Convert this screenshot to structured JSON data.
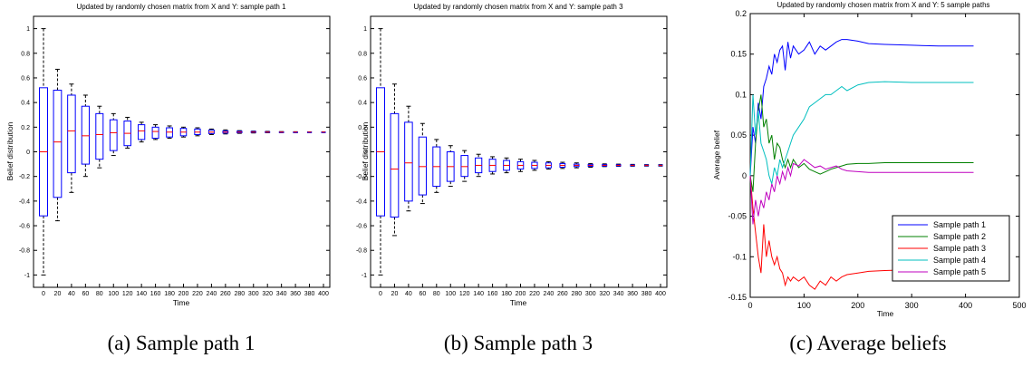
{
  "captions": [
    "(a) Sample path 1",
    "(b) Sample path 3",
    "(c) Average beliefs"
  ],
  "chart_data": [
    {
      "type": "boxplot",
      "title": "Updated by randomly chosen matrix from X and Y: sample path 1",
      "xlabel": "Time",
      "ylabel": "Belief distribution",
      "ylim": [
        -1.1,
        1.1
      ],
      "yticks": [
        "1",
        "0.8",
        "0.6",
        "0.4",
        "0.2",
        "0",
        "-0.2",
        "-0.4",
        "-0.6",
        "-0.8",
        "-1"
      ],
      "categories": [
        "0",
        "20",
        "40",
        "60",
        "80",
        "100",
        "120",
        "140",
        "160",
        "180",
        "200",
        "220",
        "240",
        "260",
        "280",
        "300",
        "320",
        "340",
        "360",
        "380",
        "400"
      ],
      "median": [
        0,
        0.08,
        0.17,
        0.13,
        0.14,
        0.155,
        0.15,
        0.17,
        0.165,
        0.16,
        0.16,
        0.16,
        0.16,
        0.16,
        0.16,
        0.16,
        0.16,
        0.16,
        0.16,
        0.16,
        0.16
      ],
      "q1": [
        -0.52,
        -0.37,
        -0.17,
        -0.1,
        -0.06,
        0.01,
        0.05,
        0.1,
        0.11,
        0.12,
        0.13,
        0.14,
        0.148,
        0.152,
        0.155,
        0.157,
        0.158,
        0.158,
        0.159,
        0.159,
        0.159
      ],
      "q3": [
        0.52,
        0.5,
        0.46,
        0.37,
        0.31,
        0.26,
        0.25,
        0.22,
        0.2,
        0.195,
        0.19,
        0.185,
        0.177,
        0.17,
        0.167,
        0.165,
        0.163,
        0.162,
        0.161,
        0.161,
        0.161
      ],
      "wmin": [
        -1,
        -0.56,
        -0.33,
        -0.2,
        -0.13,
        -0.03,
        0.03,
        0.08,
        0.1,
        0.11,
        0.12,
        0.13,
        0.14,
        0.145,
        0.15,
        0.153,
        0.155,
        0.156,
        0.157,
        0.158,
        0.158
      ],
      "wmax": [
        1,
        0.67,
        0.55,
        0.46,
        0.37,
        0.31,
        0.28,
        0.24,
        0.22,
        0.21,
        0.2,
        0.195,
        0.185,
        0.178,
        0.172,
        0.168,
        0.166,
        0.164,
        0.163,
        0.162,
        0.162
      ]
    },
    {
      "type": "boxplot",
      "title": "Updated by randomly chosen matrix from X and Y: sample path 3",
      "xlabel": "Time",
      "ylabel": "Belief distribution",
      "ylim": [
        -1.1,
        1.1
      ],
      "yticks": [
        "1",
        "0.8",
        "0.6",
        "0.4",
        "0.2",
        "0",
        "-0.2",
        "-0.4",
        "-0.6",
        "-0.8",
        "-1"
      ],
      "categories": [
        "0",
        "20",
        "40",
        "60",
        "80",
        "100",
        "120",
        "140",
        "160",
        "180",
        "200",
        "220",
        "240",
        "260",
        "280",
        "300",
        "320",
        "340",
        "360",
        "380",
        "400"
      ],
      "median": [
        0,
        -0.14,
        -0.09,
        -0.12,
        -0.12,
        -0.12,
        -0.12,
        -0.11,
        -0.11,
        -0.11,
        -0.11,
        -0.11,
        -0.11,
        -0.11,
        -0.11,
        -0.11,
        -0.11,
        -0.11,
        -0.11,
        -0.11,
        -0.11
      ],
      "q1": [
        -0.52,
        -0.53,
        -0.4,
        -0.35,
        -0.28,
        -0.24,
        -0.2,
        -0.17,
        -0.16,
        -0.15,
        -0.14,
        -0.135,
        -0.13,
        -0.125,
        -0.12,
        -0.118,
        -0.116,
        -0.115,
        -0.114,
        -0.113,
        -0.113
      ],
      "q3": [
        0.52,
        0.31,
        0.24,
        0.12,
        0.04,
        0,
        -0.03,
        -0.05,
        -0.06,
        -0.07,
        -0.08,
        -0.085,
        -0.09,
        -0.095,
        -0.1,
        -0.102,
        -0.104,
        -0.105,
        -0.106,
        -0.107,
        -0.107
      ],
      "wmin": [
        -1,
        -0.68,
        -0.48,
        -0.42,
        -0.33,
        -0.28,
        -0.24,
        -0.2,
        -0.18,
        -0.17,
        -0.16,
        -0.15,
        -0.14,
        -0.135,
        -0.13,
        -0.125,
        -0.12,
        -0.118,
        -0.117,
        -0.116,
        -0.116
      ],
      "wmax": [
        1,
        0.55,
        0.37,
        0.23,
        0.1,
        0.05,
        0.01,
        -0.02,
        -0.04,
        -0.05,
        -0.06,
        -0.07,
        -0.08,
        -0.085,
        -0.09,
        -0.095,
        -0.098,
        -0.1,
        -0.102,
        -0.104,
        -0.104
      ]
    },
    {
      "type": "line",
      "title": "Updated by randomly chosen matrix from X and Y: 5 sample paths",
      "xlabel": "Time",
      "ylabel": "Average belief",
      "xlim": [
        0,
        500
      ],
      "ylim": [
        -0.15,
        0.2
      ],
      "xticks": [
        0,
        100,
        200,
        300,
        400,
        500
      ],
      "yticks": [
        0.2,
        0.15,
        0.1,
        0.05,
        0,
        -0.05,
        -0.1,
        -0.15
      ],
      "ytick_labels": [
        "0.2",
        "0.15",
        "0.1",
        "0.05",
        "0",
        "-0.05",
        "-0.1",
        "-0.15"
      ],
      "legend_position": "bottom-right",
      "series": [
        {
          "name": "Sample path 1",
          "color": "#0000ff",
          "x": [
            0,
            5,
            10,
            15,
            20,
            25,
            30,
            35,
            40,
            45,
            50,
            55,
            60,
            65,
            70,
            75,
            80,
            90,
            100,
            110,
            120,
            130,
            140,
            150,
            160,
            170,
            180,
            200,
            220,
            250,
            300,
            350,
            415
          ],
          "y": [
            0.0,
            0.06,
            0.04,
            0.09,
            0.07,
            0.11,
            0.12,
            0.135,
            0.125,
            0.15,
            0.14,
            0.155,
            0.16,
            0.13,
            0.165,
            0.145,
            0.16,
            0.15,
            0.155,
            0.165,
            0.15,
            0.16,
            0.155,
            0.16,
            0.165,
            0.168,
            0.168,
            0.166,
            0.163,
            0.162,
            0.161,
            0.16,
            0.16
          ]
        },
        {
          "name": "Sample path 2",
          "color": "#008000",
          "x": [
            0,
            5,
            10,
            15,
            20,
            25,
            30,
            35,
            40,
            45,
            50,
            55,
            60,
            65,
            70,
            75,
            80,
            90,
            100,
            110,
            120,
            130,
            140,
            150,
            160,
            170,
            180,
            200,
            220,
            250,
            300,
            350,
            415
          ],
          "y": [
            0.0,
            -0.02,
            0.04,
            0.08,
            0.1,
            0.06,
            0.07,
            0.04,
            0.05,
            0.02,
            0.04,
            0.035,
            0.02,
            0.01,
            0.02,
            0.01,
            0.02,
            0.01,
            0.015,
            0.008,
            0.005,
            0.002,
            0.005,
            0.008,
            0.01,
            0.012,
            0.014,
            0.015,
            0.015,
            0.016,
            0.016,
            0.016,
            0.016
          ]
        },
        {
          "name": "Sample path 3",
          "color": "#ff0000",
          "x": [
            0,
            5,
            10,
            15,
            20,
            25,
            30,
            35,
            40,
            45,
            50,
            55,
            60,
            65,
            70,
            75,
            80,
            90,
            100,
            110,
            120,
            130,
            140,
            150,
            160,
            170,
            180,
            200,
            220,
            250,
            300,
            350,
            415
          ],
          "y": [
            0.0,
            -0.04,
            -0.07,
            -0.1,
            -0.12,
            -0.06,
            -0.1,
            -0.08,
            -0.1,
            -0.11,
            -0.1,
            -0.115,
            -0.12,
            -0.135,
            -0.125,
            -0.13,
            -0.125,
            -0.13,
            -0.125,
            -0.135,
            -0.14,
            -0.13,
            -0.135,
            -0.125,
            -0.13,
            -0.125,
            -0.122,
            -0.12,
            -0.118,
            -0.117,
            -0.116,
            -0.115,
            -0.115
          ]
        },
        {
          "name": "Sample path 4",
          "color": "#00bfbf",
          "x": [
            0,
            5,
            10,
            15,
            20,
            25,
            30,
            35,
            40,
            45,
            50,
            55,
            60,
            65,
            70,
            75,
            80,
            90,
            100,
            110,
            120,
            130,
            140,
            150,
            160,
            170,
            180,
            200,
            220,
            250,
            300,
            350,
            415
          ],
          "y": [
            0.0,
            0.1,
            0.05,
            0.08,
            0.04,
            0.03,
            0.02,
            0.0,
            -0.01,
            0.01,
            0.0,
            0.02,
            0.01,
            0.02,
            0.03,
            0.04,
            0.05,
            0.06,
            0.07,
            0.085,
            0.09,
            0.095,
            0.1,
            0.1,
            0.105,
            0.11,
            0.105,
            0.112,
            0.115,
            0.116,
            0.115,
            0.115,
            0.115
          ]
        },
        {
          "name": "Sample path 5",
          "color": "#bf00bf",
          "x": [
            0,
            5,
            10,
            15,
            20,
            25,
            30,
            35,
            40,
            45,
            50,
            55,
            60,
            65,
            70,
            75,
            80,
            90,
            100,
            110,
            120,
            130,
            140,
            150,
            160,
            170,
            180,
            200,
            220,
            250,
            300,
            350,
            415
          ],
          "y": [
            0.0,
            -0.06,
            -0.03,
            -0.05,
            -0.03,
            -0.04,
            -0.02,
            -0.03,
            -0.01,
            -0.02,
            0.0,
            -0.01,
            0.005,
            -0.005,
            0.01,
            0.0,
            0.015,
            0.012,
            0.02,
            0.015,
            0.01,
            0.012,
            0.008,
            0.01,
            0.012,
            0.008,
            0.006,
            0.005,
            0.004,
            0.004,
            0.004,
            0.004,
            0.004
          ]
        }
      ]
    }
  ]
}
